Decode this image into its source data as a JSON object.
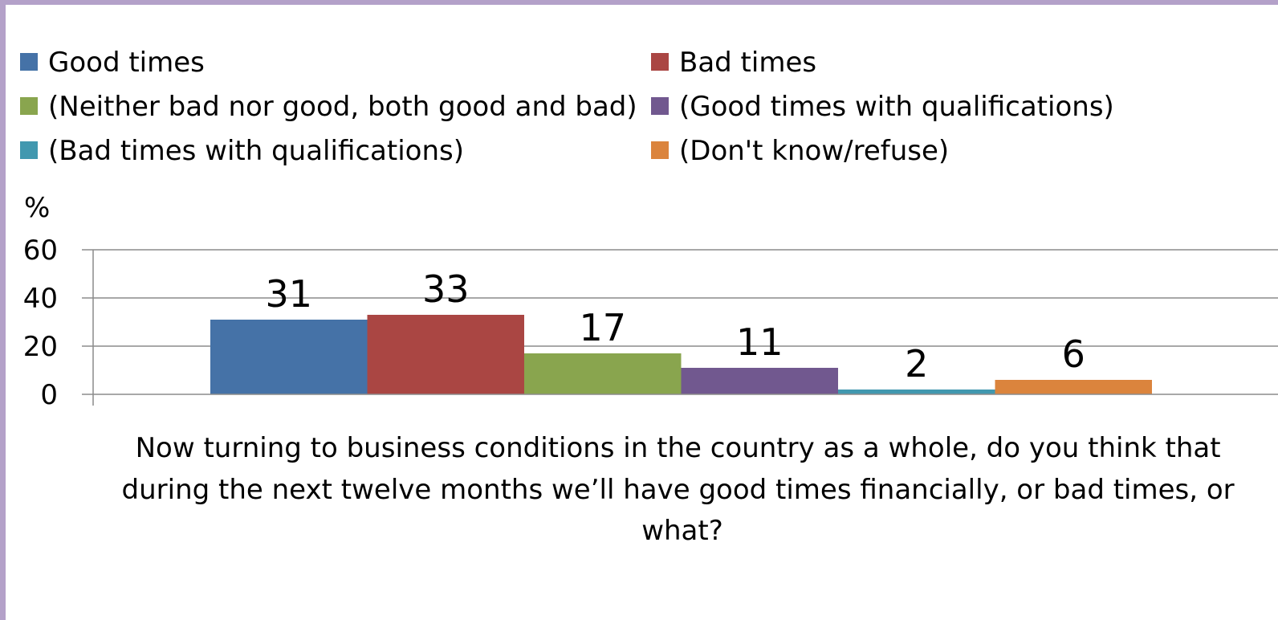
{
  "chart_data": {
    "type": "bar",
    "categories": [
      ""
    ],
    "series": [
      {
        "name": "Good times",
        "values": [
          31
        ],
        "color": "#4572a7"
      },
      {
        "name": "Bad times",
        "values": [
          33
        ],
        "color": "#aa4643"
      },
      {
        "name": "(Neither bad nor good, both good and bad)",
        "values": [
          17
        ],
        "color": "#89a54e"
      },
      {
        "name": "(Good times with qualifications)",
        "values": [
          11
        ],
        "color": "#71588f"
      },
      {
        "name": "(Bad times with qualifications)",
        "values": [
          2
        ],
        "color": "#4198af"
      },
      {
        "name": "(Don't know/refuse)",
        "values": [
          6
        ],
        "color": "#db843d"
      }
    ],
    "ylabel": "%",
    "ylim": [
      0,
      60
    ],
    "yticks": [
      0,
      20,
      40,
      60
    ],
    "grid": true,
    "legend_position": "top",
    "xlabel_lines": [
      "Now turning to business conditions in the country as a whole, do you think that",
      "during the next twelve months we’ll have good times financially, or bad times, or",
      "what?"
    ]
  }
}
